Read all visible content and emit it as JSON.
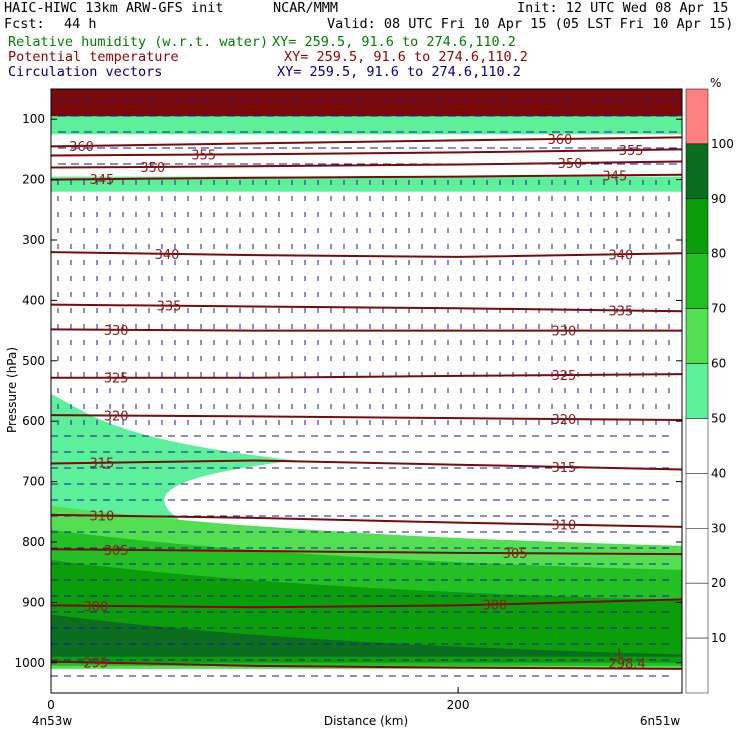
{
  "header": {
    "model": "HAIC-HIWC 13km ARW-GFS init",
    "org": "NCAR/MMM",
    "init": "Init: 12 UTC Wed 08 Apr 15",
    "fcst_label": "Fcst:",
    "fcst_value": "44 h",
    "valid": "Valid: 08 UTC Fri 10 Apr 15 (05 LST Fri 10 Apr 15)"
  },
  "fields": [
    {
      "name": "Relative humidity (w.r.t. water)",
      "xy": "XY= 259.5, 91.6 to 274.6,110.2",
      "color": "#008000"
    },
    {
      "name": "Potential temperature",
      "xy": "XY= 259.5, 91.6 to 274.6,110.2",
      "color": "#990000"
    },
    {
      "name": "Circulation vectors",
      "xy": "XY= 259.5, 91.6 to 274.6,110.2",
      "color": "#000080"
    }
  ],
  "chart_data": {
    "type": "heatmap",
    "xlabel": "Distance (km)",
    "ylabel": "Pressure (hPa)",
    "x_range": [
      0,
      310
    ],
    "y_range": [
      1050,
      50
    ],
    "x_ticks": [
      0,
      200
    ],
    "y_ticks": [
      100,
      200,
      300,
      400,
      500,
      600,
      700,
      800,
      900,
      1000
    ],
    "x_endpoint_labels": [
      "4n53w",
      "6n51w"
    ],
    "colorbar": {
      "unit": "%",
      "levels": [
        10,
        20,
        30,
        40,
        50,
        60,
        70,
        80,
        90,
        100
      ],
      "colors": [
        "#ffffff",
        "#ffffff",
        "#ffffff",
        "#ffffff",
        "#ffffff",
        "#5cf09a",
        "#52e052",
        "#22c022",
        "#0a9e0a",
        "#0a6e1e",
        "#ff8080"
      ]
    },
    "humidity_regions": [
      {
        "level": "50-60",
        "x": [
          0,
          310
        ],
        "p_top": 90,
        "p_bottom": 125
      },
      {
        "level": "50-60",
        "x": [
          0,
          310
        ],
        "p_top": 195,
        "p_bottom": 220
      },
      {
        "level": "50-60",
        "x": [
          0,
          120
        ],
        "p_top": 555,
        "p_bottom": 765,
        "note": "lower-left plume"
      },
      {
        "level": "60-70",
        "x": [
          0,
          310
        ],
        "p_top": 740,
        "p_bottom": 1010
      },
      {
        "level": "70-80",
        "x": [
          0,
          310
        ],
        "p_top": 780,
        "p_bottom": 1005
      },
      {
        "level": "80-90",
        "x": [
          0,
          310
        ],
        "p_top": 830,
        "p_bottom": 1000
      },
      {
        "level": "90-100",
        "x": [
          0,
          310
        ],
        "p_top": 920,
        "p_bottom": 990
      },
      {
        "level": ">100",
        "x": [
          0,
          310
        ],
        "p_top": 50,
        "p_bottom": 95
      }
    ],
    "theta_contours": [
      {
        "value": 360,
        "x": [
          0,
          100,
          200,
          310
        ],
        "p": [
          145,
          140,
          135,
          130
        ],
        "labels": [
          {
            "x": 15,
            "text": "360"
          },
          {
            "x": 250,
            "text": "360"
          }
        ]
      },
      {
        "value": 355,
        "x": [
          0,
          100,
          200,
          310
        ],
        "p": [
          160,
          158,
          155,
          150
        ],
        "labels": [
          {
            "x": 75,
            "text": "355"
          },
          {
            "x": 285,
            "text": "355"
          }
        ]
      },
      {
        "value": 350,
        "x": [
          0,
          100,
          200,
          310
        ],
        "p": [
          180,
          178,
          175,
          170
        ],
        "labels": [
          {
            "x": 50,
            "text": "350"
          },
          {
            "x": 255,
            "text": "350"
          }
        ]
      },
      {
        "value": 345,
        "x": [
          0,
          100,
          200,
          310
        ],
        "p": [
          200,
          197,
          195,
          192
        ],
        "labels": [
          {
            "x": 25,
            "text": "345"
          },
          {
            "x": 277,
            "text": "345"
          }
        ]
      },
      {
        "value": 340,
        "x": [
          0,
          100,
          200,
          310
        ],
        "p": [
          320,
          325,
          328,
          322
        ],
        "labels": [
          {
            "x": 57,
            "text": "340"
          },
          {
            "x": 280,
            "text": "340"
          }
        ]
      },
      {
        "value": 335,
        "x": [
          0,
          100,
          200,
          310
        ],
        "p": [
          407,
          410,
          413,
          418
        ],
        "labels": [
          {
            "x": 58,
            "text": "335"
          },
          {
            "x": 280,
            "text": "335"
          }
        ]
      },
      {
        "value": 330,
        "x": [
          0,
          100,
          200,
          310
        ],
        "p": [
          448,
          450,
          450,
          450
        ],
        "labels": [
          {
            "x": 32,
            "text": "330"
          },
          {
            "x": 252,
            "text": "330"
          }
        ]
      },
      {
        "value": 325,
        "x": [
          0,
          100,
          200,
          310
        ],
        "p": [
          528,
          528,
          525,
          522
        ],
        "labels": [
          {
            "x": 32,
            "text": "325"
          },
          {
            "x": 252,
            "text": "325"
          }
        ]
      },
      {
        "value": 320,
        "x": [
          0,
          100,
          200,
          310
        ],
        "p": [
          590,
          592,
          595,
          598
        ],
        "labels": [
          {
            "x": 32,
            "text": "320"
          },
          {
            "x": 252,
            "text": "320"
          }
        ]
      },
      {
        "value": 315,
        "x": [
          0,
          100,
          200,
          310
        ],
        "p": [
          670,
          665,
          672,
          680
        ],
        "labels": [
          {
            "x": 25,
            "text": "315"
          },
          {
            "x": 252,
            "text": "315"
          }
        ]
      },
      {
        "value": 310,
        "x": [
          0,
          100,
          200,
          310
        ],
        "p": [
          755,
          760,
          768,
          775
        ],
        "labels": [
          {
            "x": 25,
            "text": "310"
          },
          {
            "x": 252,
            "text": "310"
          }
        ]
      },
      {
        "value": 305,
        "x": [
          0,
          100,
          200,
          310
        ],
        "p": [
          812,
          815,
          818,
          820
        ],
        "labels": [
          {
            "x": 32,
            "text": "305"
          },
          {
            "x": 228,
            "text": "305"
          }
        ]
      },
      {
        "value": 300,
        "x": [
          0,
          100,
          200,
          310
        ],
        "p": [
          905,
          908,
          905,
          895
        ],
        "labels": [
          {
            "x": 22,
            "text": "300"
          },
          {
            "x": 218,
            "text": "300"
          }
        ]
      },
      {
        "value": 295,
        "x": [
          0,
          100,
          200,
          310
        ],
        "p": [
          998,
          1005,
          1008,
          1010
        ],
        "labels": [
          {
            "x": 22,
            "text": "295"
          }
        ]
      }
    ],
    "annotations": [
      {
        "text": "L",
        "x": 280,
        "p": 985
      },
      {
        "text": "298.4",
        "x": 283,
        "p": 1000
      }
    ]
  }
}
